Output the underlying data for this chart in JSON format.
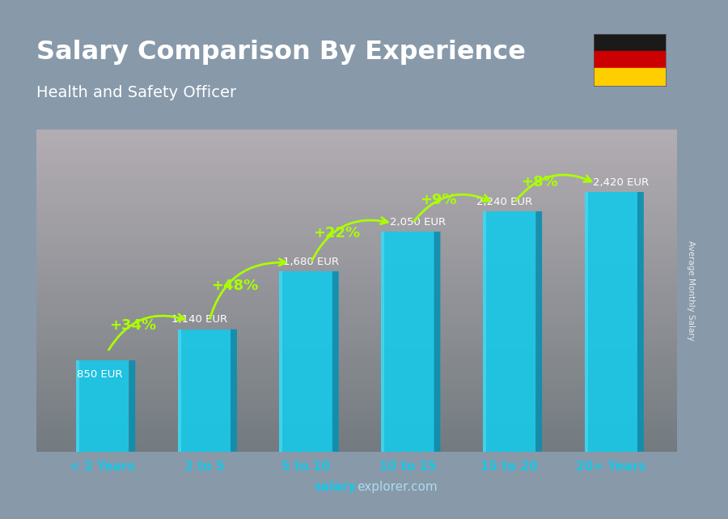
{
  "title": "Salary Comparison By Experience",
  "subtitle": "Health and Safety Officer",
  "categories": [
    "< 2 Years",
    "2 to 5",
    "5 to 10",
    "10 to 15",
    "15 to 20",
    "20+ Years"
  ],
  "values": [
    850,
    1140,
    1680,
    2050,
    2240,
    2420
  ],
  "salary_labels": [
    "850 EUR",
    "1,140 EUR",
    "1,680 EUR",
    "2,050 EUR",
    "2,240 EUR",
    "2,420 EUR"
  ],
  "pct_labels": [
    "+34%",
    "+48%",
    "+22%",
    "+9%",
    "+8%"
  ],
  "bar_face_color": "#18c8e8",
  "bar_right_color": "#0a90b0",
  "bar_top_color": "#60e8f8",
  "title_color": "#ffffff",
  "subtitle_color": "#ffffff",
  "salary_label_color": "#ffffff",
  "pct_color": "#aaff00",
  "tick_color": "#18c8e8",
  "footer_salary_color": "#18c8e8",
  "footer_explorer_color": "#aaddee",
  "ylabel_text": "Average Monthly Salary",
  "ylim": [
    0,
    3000
  ],
  "bg_color": "#8899aa",
  "bar_gap": 0.35,
  "bar_width": 0.52,
  "bar_depth": 0.08,
  "flag_black": "#1a1a1a",
  "flag_red": "#cc0000",
  "flag_gold": "#ffce00"
}
